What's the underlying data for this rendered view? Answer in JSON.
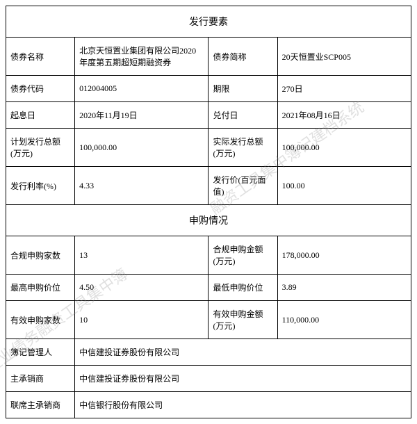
{
  "header": {
    "title": "发行要素"
  },
  "issue": {
    "name_label": "债券名称",
    "name_value": "北京天恒置业集团有限公司2020年度第五期超短期融资券",
    "short_label": "债券简称",
    "short_value": "20天恒置业SCP005",
    "code_label": "债券代码",
    "code_value": "012004005",
    "term_label": "期限",
    "term_value": "270日",
    "start_date_label": "起息日",
    "start_date_value": "2020年11月19日",
    "pay_date_label": "兑付日",
    "pay_date_value": "2021年08月16日",
    "plan_total_label": "计划发行总额(万元)",
    "plan_total_value": "100,000.00",
    "actual_total_label": "实际发行总额(万元)",
    "actual_total_value": "100,000.00",
    "rate_label": "发行利率(%)",
    "rate_value": "4.33",
    "price_label": "发行价(百元面值)",
    "price_value": "100.00"
  },
  "subscribe_header": {
    "title": "申购情况"
  },
  "subscribe": {
    "valid_count_label": "合规申购家数",
    "valid_count_value": "13",
    "valid_amount_label": "合规申购金额(万元)",
    "valid_amount_value": "178,000.00",
    "max_price_label": "最高申购价位",
    "max_price_value": "4.50",
    "min_price_label": "最低申购价位",
    "min_price_value": "3.89",
    "eff_count_label": "有效申购家数",
    "eff_count_value": "10",
    "eff_amount_label": "有效申购金额(万元)",
    "eff_amount_value": "110,000.00"
  },
  "parties": {
    "bookrunner_label": "簿记管理人",
    "bookrunner_value": "中信建投证券股份有限公司",
    "lead_label": "主承销商",
    "lead_value": "中信建投证券股份有限公司",
    "jointlead_label": "联席主承销商",
    "jointlead_value": "中信银行股份有限公司"
  },
  "watermark": {
    "text1": "融资工具集中簿记建档系统",
    "text2": "融企业债务融资工具集中簿"
  }
}
